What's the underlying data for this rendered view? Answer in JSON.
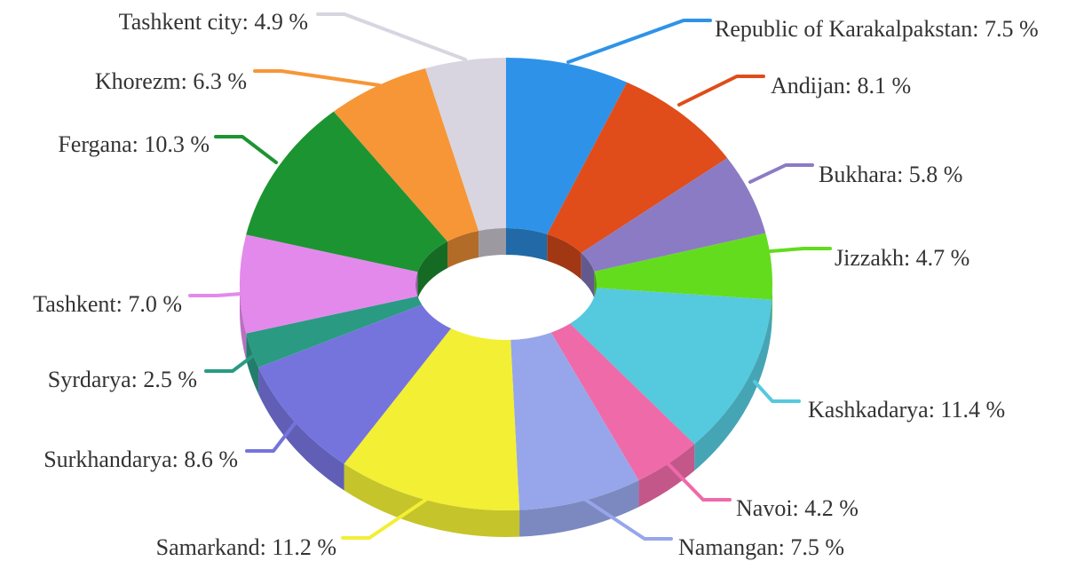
{
  "chart_data": {
    "type": "pie",
    "variant": "3d-donut",
    "title": "",
    "label_format": "{name}: {value} %",
    "slices": [
      {
        "name": "Republic of Karakalpakstan",
        "value": 7.5,
        "value_text": "7.5",
        "color": "#2e93e8"
      },
      {
        "name": "Andijan",
        "value": 8.1,
        "value_text": "8.1",
        "color": "#e04c1a"
      },
      {
        "name": "Bukhara",
        "value": 5.8,
        "value_text": "5.8",
        "color": "#8b7bc4"
      },
      {
        "name": "Jizzakh",
        "value": 4.7,
        "value_text": "4.7",
        "color": "#63dc1e"
      },
      {
        "name": "Kashkadarya",
        "value": 11.4,
        "value_text": "11.4",
        "color": "#55c9dd"
      },
      {
        "name": "Navoi",
        "value": 4.2,
        "value_text": "4.2",
        "color": "#ef6aa8"
      },
      {
        "name": "Namangan",
        "value": 7.5,
        "value_text": "7.5",
        "color": "#97a6ea"
      },
      {
        "name": "Samarkand",
        "value": 11.2,
        "value_text": "11.2",
        "color": "#f2ef35"
      },
      {
        "name": "Surkhandarya",
        "value": 8.6,
        "value_text": "8.6",
        "color": "#7574dd"
      },
      {
        "name": "Syrdarya",
        "value": 2.5,
        "value_text": "2.5",
        "color": "#2a9a83"
      },
      {
        "name": "Tashkent",
        "value": 7.0,
        "value_text": "7.0",
        "color": "#e389ec"
      },
      {
        "name": "Fergana",
        "value": 10.3,
        "value_text": "10.3",
        "color": "#1d9432"
      },
      {
        "name": "Khorezm",
        "value": 6.3,
        "value_text": "6.3",
        "color": "#f79637"
      },
      {
        "name": "Tashkent city",
        "value": 4.9,
        "value_text": "4.9",
        "color": "#d8d5e0"
      }
    ]
  }
}
